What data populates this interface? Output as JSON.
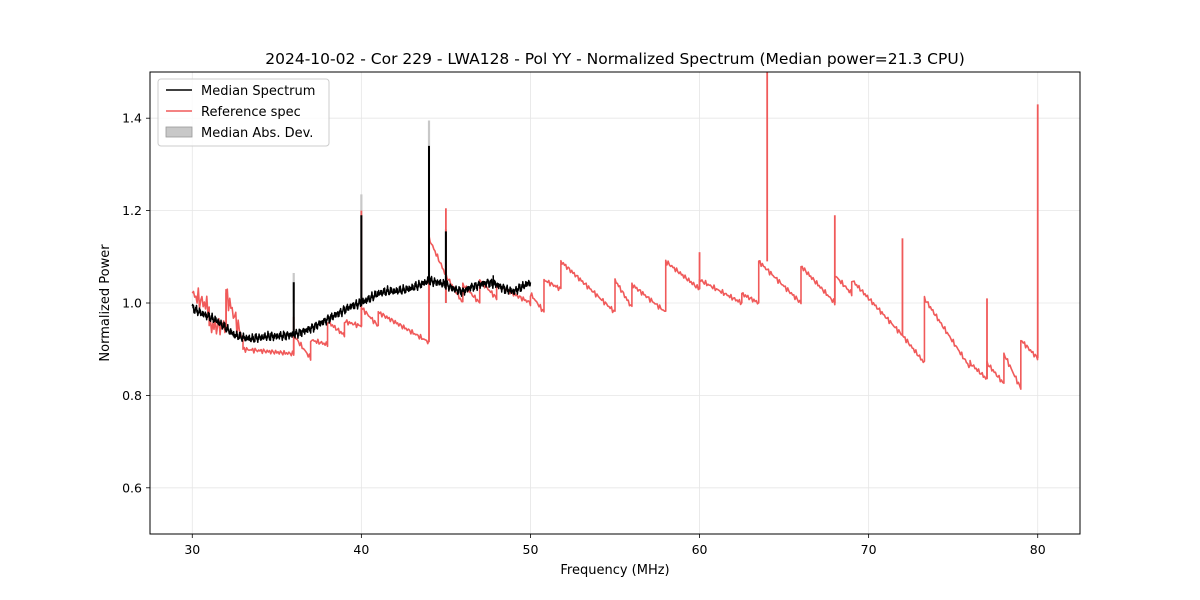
{
  "chart_data": {
    "type": "line",
    "title": "2024-10-02 - Cor 229 - LWA128 - Pol YY - Normalized Spectrum (Median power=21.3 CPU)",
    "xlabel": "Frequency (MHz)",
    "ylabel": "Normalized Power",
    "xlim": [
      27.5,
      82.5
    ],
    "ylim": [
      0.5,
      1.5
    ],
    "xticks": [
      30,
      40,
      50,
      60,
      70,
      80
    ],
    "yticks": [
      0.6,
      0.8,
      1.0,
      1.2,
      1.4
    ],
    "xtick_labels": [
      "30",
      "40",
      "50",
      "60",
      "70",
      "80"
    ],
    "ytick_labels": [
      "0.6",
      "0.8",
      "1.0",
      "1.2",
      "1.4"
    ],
    "grid": true,
    "legend": {
      "placement": "top-left",
      "entries": [
        {
          "label": "Median Spectrum",
          "color": "#000000",
          "kind": "line"
        },
        {
          "label": "Reference spec",
          "color": "#f05a5a",
          "kind": "line"
        },
        {
          "label": "Median Abs. Dev.",
          "color": "#c8c8c8",
          "kind": "patch"
        }
      ]
    },
    "series": [
      {
        "name": "Reference spec",
        "color": "#f05a5a",
        "x": [
          30.0,
          30.1,
          30.2,
          30.25,
          30.3,
          30.4,
          30.5,
          30.6,
          30.7,
          30.8,
          30.9,
          31.0,
          31.0,
          31.1,
          31.3,
          31.5,
          31.7,
          31.9,
          32.0,
          32.0,
          32.2,
          32.5,
          32.8,
          33.0,
          33.0,
          33.2,
          33.5,
          34.0,
          34.5,
          35.0,
          35.5,
          36.0,
          36.0,
          36.05,
          36.1,
          36.3,
          36.6,
          37.0,
          37.0,
          37.1,
          37.5,
          38.0,
          38.0,
          38.4,
          38.7,
          39.0,
          39.0,
          39.2,
          39.6,
          40.0,
          40.0,
          40.05,
          40.1,
          40.3,
          40.6,
          41.0,
          41.0,
          41.2,
          41.5,
          42.0,
          42.5,
          43.0,
          43.5,
          44.0,
          44.0,
          44.2,
          44.6,
          45.0,
          45.0,
          45.05,
          45.1,
          45.5,
          46.0,
          46.0,
          46.5,
          47.0,
          47.0,
          47.5,
          48.0,
          48.0,
          48.5,
          48.8,
          49.0,
          49.3,
          49.7,
          50.0,
          50.2,
          50.5,
          50.8,
          51.0,
          51.3,
          51.5,
          51.8,
          52.0,
          52.0,
          52.5,
          53.0,
          53.5,
          54.0,
          54.5,
          55.0,
          55.1,
          55.5,
          55.8,
          56.0,
          56.3,
          56.5,
          56.9,
          57.0,
          57.3,
          57.6,
          58.0,
          58.0,
          58.5,
          59.0,
          59.5,
          60.0,
          60.0,
          60.1,
          60.5,
          60.6,
          61.0,
          61.5,
          62.0,
          62.5,
          62.6,
          63.0,
          63.5,
          64.0,
          64.0,
          64.05,
          64.1,
          64.5,
          65.0,
          65.5,
          66.0,
          66.1,
          66.5,
          67.0,
          67.5,
          68.0,
          68.0,
          68.05,
          68.1,
          68.5,
          69.0,
          69.0,
          69.5,
          70.0,
          70.5,
          71.0,
          71.5,
          71.8,
          72.0,
          72.0,
          72.05,
          72.1,
          72.5,
          73.0,
          73.3,
          73.5,
          74.0,
          74.5,
          75.0,
          75.5,
          75.9,
          76.0,
          76.5,
          76.8,
          77.0,
          77.0,
          77.05,
          77.1,
          77.5,
          78.0,
          78.0,
          78.5,
          79.0,
          79.0,
          79.1,
          79.5,
          79.8,
          80.0,
          80.0
        ]
      },
      {
        "name": "Median Spectrum",
        "color": "#000000",
        "x_range": [
          30.0,
          50.0
        ],
        "anchors_x": [
          30.0,
          30.5,
          31.0,
          31.5,
          32.0,
          32.5,
          33.0,
          33.5,
          34.0,
          34.5,
          35.0,
          35.5,
          36.0,
          36.5,
          37.0,
          37.5,
          38.0,
          38.5,
          39.0,
          39.5,
          40.0,
          40.5,
          41.0,
          41.5,
          42.0,
          42.5,
          43.0,
          43.5,
          44.0,
          44.5,
          45.0,
          45.5,
          46.0,
          46.5,
          47.0,
          47.5,
          48.0,
          48.5,
          49.0,
          49.5,
          50.0
        ],
        "anchors_y": [
          0.99,
          0.978,
          0.97,
          0.96,
          0.945,
          0.93,
          0.925,
          0.922,
          0.925,
          0.928,
          0.928,
          0.93,
          0.932,
          0.938,
          0.945,
          0.955,
          0.965,
          0.975,
          0.985,
          0.995,
          1.0,
          1.01,
          1.02,
          1.025,
          1.025,
          1.028,
          1.032,
          1.04,
          1.048,
          1.045,
          1.04,
          1.03,
          1.025,
          1.035,
          1.04,
          1.045,
          1.04,
          1.03,
          1.025,
          1.035,
          1.045
        ],
        "spikes": [
          {
            "x": 36.0,
            "y": 1.045
          },
          {
            "x": 40.0,
            "y": 1.19
          },
          {
            "x": 44.0,
            "y": 1.34
          },
          {
            "x": 45.0,
            "y": 1.155
          }
        ]
      }
    ],
    "mad_spikes": [
      {
        "x": 36.0,
        "y": 1.065
      },
      {
        "x": 40.0,
        "y": 1.235
      },
      {
        "x": 44.0,
        "y": 1.395
      },
      {
        "x": 45.0,
        "y": 1.16
      }
    ]
  }
}
